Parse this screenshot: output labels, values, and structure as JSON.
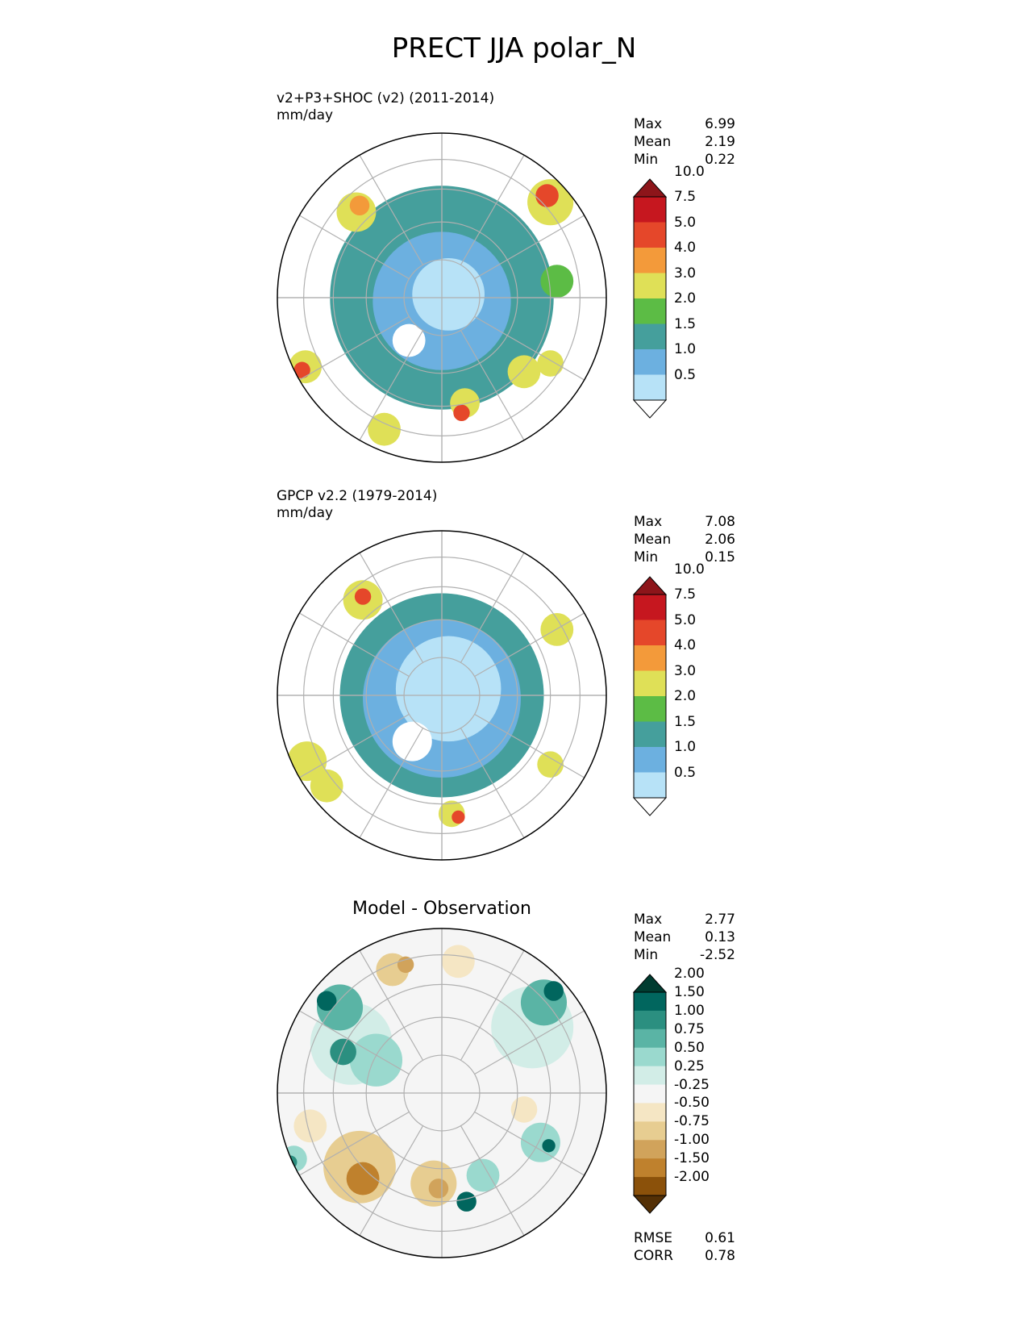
{
  "figure": {
    "title": "PRECT JJA polar_N"
  },
  "chart_data": [
    {
      "type": "heatmap",
      "projection": "north-polar-stereographic",
      "title": "v2+P3+SHOC (v2) (2011-2014)",
      "units": "mm/day",
      "stats": [
        {
          "label": "Max",
          "value": "6.99"
        },
        {
          "label": "Mean",
          "value": "2.19"
        },
        {
          "label": "Min",
          "value": "0.22"
        }
      ],
      "colorbar": {
        "levels": [
          "0.5",
          "1.0",
          "1.5",
          "2.0",
          "3.0",
          "4.0",
          "5.0",
          "7.5",
          "10.0"
        ],
        "colors": [
          "#ffffff",
          "#b7e2f7",
          "#6cb0e0",
          "#459f9c",
          "#5cbc45",
          "#dfe057",
          "#f39a3a",
          "#e5472a",
          "#c6171f",
          "#8d151a"
        ],
        "extend": "both"
      },
      "grid": true,
      "regions": [
        {
          "level": 3,
          "cx": 0.0,
          "cy": 0.0,
          "r": 0.68
        },
        {
          "level": 2,
          "cx": 0.0,
          "cy": 0.02,
          "r": 0.42
        },
        {
          "level": 1,
          "cx": 0.04,
          "cy": -0.02,
          "r": 0.22
        },
        {
          "level": 0,
          "cx": -0.2,
          "cy": 0.26,
          "r": 0.1
        },
        {
          "level": 5,
          "cx": -0.52,
          "cy": -0.52,
          "r": 0.12
        },
        {
          "level": 6,
          "cx": -0.5,
          "cy": -0.56,
          "r": 0.06
        },
        {
          "level": 5,
          "cx": 0.66,
          "cy": -0.58,
          "r": 0.14
        },
        {
          "level": 7,
          "cx": 0.64,
          "cy": -0.62,
          "r": 0.07
        },
        {
          "level": 5,
          "cx": -0.83,
          "cy": 0.42,
          "r": 0.1
        },
        {
          "level": 7,
          "cx": -0.85,
          "cy": 0.44,
          "r": 0.05
        },
        {
          "level": 5,
          "cx": 0.14,
          "cy": 0.64,
          "r": 0.09
        },
        {
          "level": 7,
          "cx": 0.12,
          "cy": 0.7,
          "r": 0.05
        },
        {
          "level": 5,
          "cx": -0.35,
          "cy": 0.8,
          "r": 0.1
        },
        {
          "level": 5,
          "cx": 0.5,
          "cy": 0.45,
          "r": 0.1
        },
        {
          "level": 5,
          "cx": 0.66,
          "cy": 0.4,
          "r": 0.08
        },
        {
          "level": 4,
          "cx": 0.7,
          "cy": -0.1,
          "r": 0.1
        }
      ]
    },
    {
      "type": "heatmap",
      "projection": "north-polar-stereographic",
      "title": "GPCP v2.2 (1979-2014)",
      "units": "mm/day",
      "stats": [
        {
          "label": "Max",
          "value": "7.08"
        },
        {
          "label": "Mean",
          "value": "2.06"
        },
        {
          "label": "Min",
          "value": "0.15"
        }
      ],
      "colorbar": {
        "levels": [
          "0.5",
          "1.0",
          "1.5",
          "2.0",
          "3.0",
          "4.0",
          "5.0",
          "7.5",
          "10.0"
        ],
        "colors": [
          "#ffffff",
          "#b7e2f7",
          "#6cb0e0",
          "#459f9c",
          "#5cbc45",
          "#dfe057",
          "#f39a3a",
          "#e5472a",
          "#c6171f",
          "#8d151a"
        ],
        "extend": "both"
      },
      "grid": true,
      "regions": [
        {
          "level": 3,
          "cx": 0.0,
          "cy": 0.0,
          "r": 0.62
        },
        {
          "level": 2,
          "cx": 0.0,
          "cy": 0.02,
          "r": 0.48
        },
        {
          "level": 1,
          "cx": 0.04,
          "cy": -0.04,
          "r": 0.32
        },
        {
          "level": 0,
          "cx": -0.18,
          "cy": 0.28,
          "r": 0.12
        },
        {
          "level": 5,
          "cx": -0.48,
          "cy": -0.58,
          "r": 0.12
        },
        {
          "level": 7,
          "cx": -0.48,
          "cy": -0.6,
          "r": 0.05
        },
        {
          "level": 5,
          "cx": 0.7,
          "cy": -0.4,
          "r": 0.1
        },
        {
          "level": 5,
          "cx": -0.82,
          "cy": 0.4,
          "r": 0.12
        },
        {
          "level": 5,
          "cx": -0.7,
          "cy": 0.55,
          "r": 0.1
        },
        {
          "level": 5,
          "cx": 0.06,
          "cy": 0.72,
          "r": 0.08
        },
        {
          "level": 7,
          "cx": 0.1,
          "cy": 0.74,
          "r": 0.04
        },
        {
          "level": 5,
          "cx": 0.66,
          "cy": 0.42,
          "r": 0.08
        }
      ]
    },
    {
      "type": "heatmap",
      "projection": "north-polar-stereographic",
      "title": "Model - Observation",
      "units": "",
      "stats": [
        {
          "label": "Max",
          "value": "2.77"
        },
        {
          "label": "Mean",
          "value": "0.13"
        },
        {
          "label": "Min",
          "value": "-2.52"
        }
      ],
      "bottom_stats": [
        {
          "label": "RMSE",
          "value": "0.61"
        },
        {
          "label": "CORR",
          "value": "0.78"
        }
      ],
      "colorbar": {
        "levels": [
          "-2.00",
          "-1.50",
          "-1.00",
          "-0.75",
          "-0.50",
          "-0.25",
          "0.25",
          "0.50",
          "0.75",
          "1.00",
          "1.50",
          "2.00"
        ],
        "colors": [
          "#543005",
          "#8b510a",
          "#bf812d",
          "#d1a35b",
          "#e7cd91",
          "#f5e6c4",
          "#f5f5f5",
          "#d2ede7",
          "#9ad9ce",
          "#5ab4a5",
          "#2b8f80",
          "#01665e",
          "#003c30"
        ],
        "extend": "both"
      },
      "grid": true,
      "regions": [
        {
          "level": 6,
          "cx": 0.0,
          "cy": 0.0,
          "r": 1.0
        },
        {
          "level": 7,
          "cx": -0.55,
          "cy": -0.3,
          "r": 0.25
        },
        {
          "level": 9,
          "cx": -0.62,
          "cy": -0.52,
          "r": 0.14
        },
        {
          "level": 11,
          "cx": -0.7,
          "cy": -0.56,
          "r": 0.06
        },
        {
          "level": 8,
          "cx": -0.4,
          "cy": -0.2,
          "r": 0.16
        },
        {
          "level": 10,
          "cx": -0.6,
          "cy": -0.25,
          "r": 0.08
        },
        {
          "level": 7,
          "cx": 0.55,
          "cy": -0.4,
          "r": 0.25
        },
        {
          "level": 9,
          "cx": 0.62,
          "cy": -0.55,
          "r": 0.14
        },
        {
          "level": 11,
          "cx": 0.68,
          "cy": -0.62,
          "r": 0.06
        },
        {
          "level": 8,
          "cx": 0.6,
          "cy": 0.3,
          "r": 0.12
        },
        {
          "level": 11,
          "cx": 0.65,
          "cy": 0.32,
          "r": 0.04
        },
        {
          "level": 8,
          "cx": 0.25,
          "cy": 0.5,
          "r": 0.1
        },
        {
          "level": 11,
          "cx": 0.15,
          "cy": 0.66,
          "r": 0.06
        },
        {
          "level": 4,
          "cx": -0.5,
          "cy": 0.45,
          "r": 0.22
        },
        {
          "level": 2,
          "cx": -0.48,
          "cy": 0.52,
          "r": 0.1
        },
        {
          "level": 4,
          "cx": -0.05,
          "cy": 0.55,
          "r": 0.14
        },
        {
          "level": 3,
          "cx": -0.02,
          "cy": 0.58,
          "r": 0.06
        },
        {
          "level": 4,
          "cx": -0.3,
          "cy": -0.75,
          "r": 0.1
        },
        {
          "level": 3,
          "cx": -0.22,
          "cy": -0.78,
          "r": 0.05
        },
        {
          "level": 5,
          "cx": 0.1,
          "cy": -0.8,
          "r": 0.1
        },
        {
          "level": 5,
          "cx": 0.5,
          "cy": 0.1,
          "r": 0.08
        },
        {
          "level": 5,
          "cx": -0.8,
          "cy": 0.2,
          "r": 0.1
        },
        {
          "level": 8,
          "cx": -0.9,
          "cy": 0.4,
          "r": 0.08
        },
        {
          "level": 10,
          "cx": -0.92,
          "cy": 0.42,
          "r": 0.04
        },
        {
          "level": 7,
          "cx": 0.0,
          "cy": 0.0,
          "r": 0.0
        }
      ]
    }
  ]
}
